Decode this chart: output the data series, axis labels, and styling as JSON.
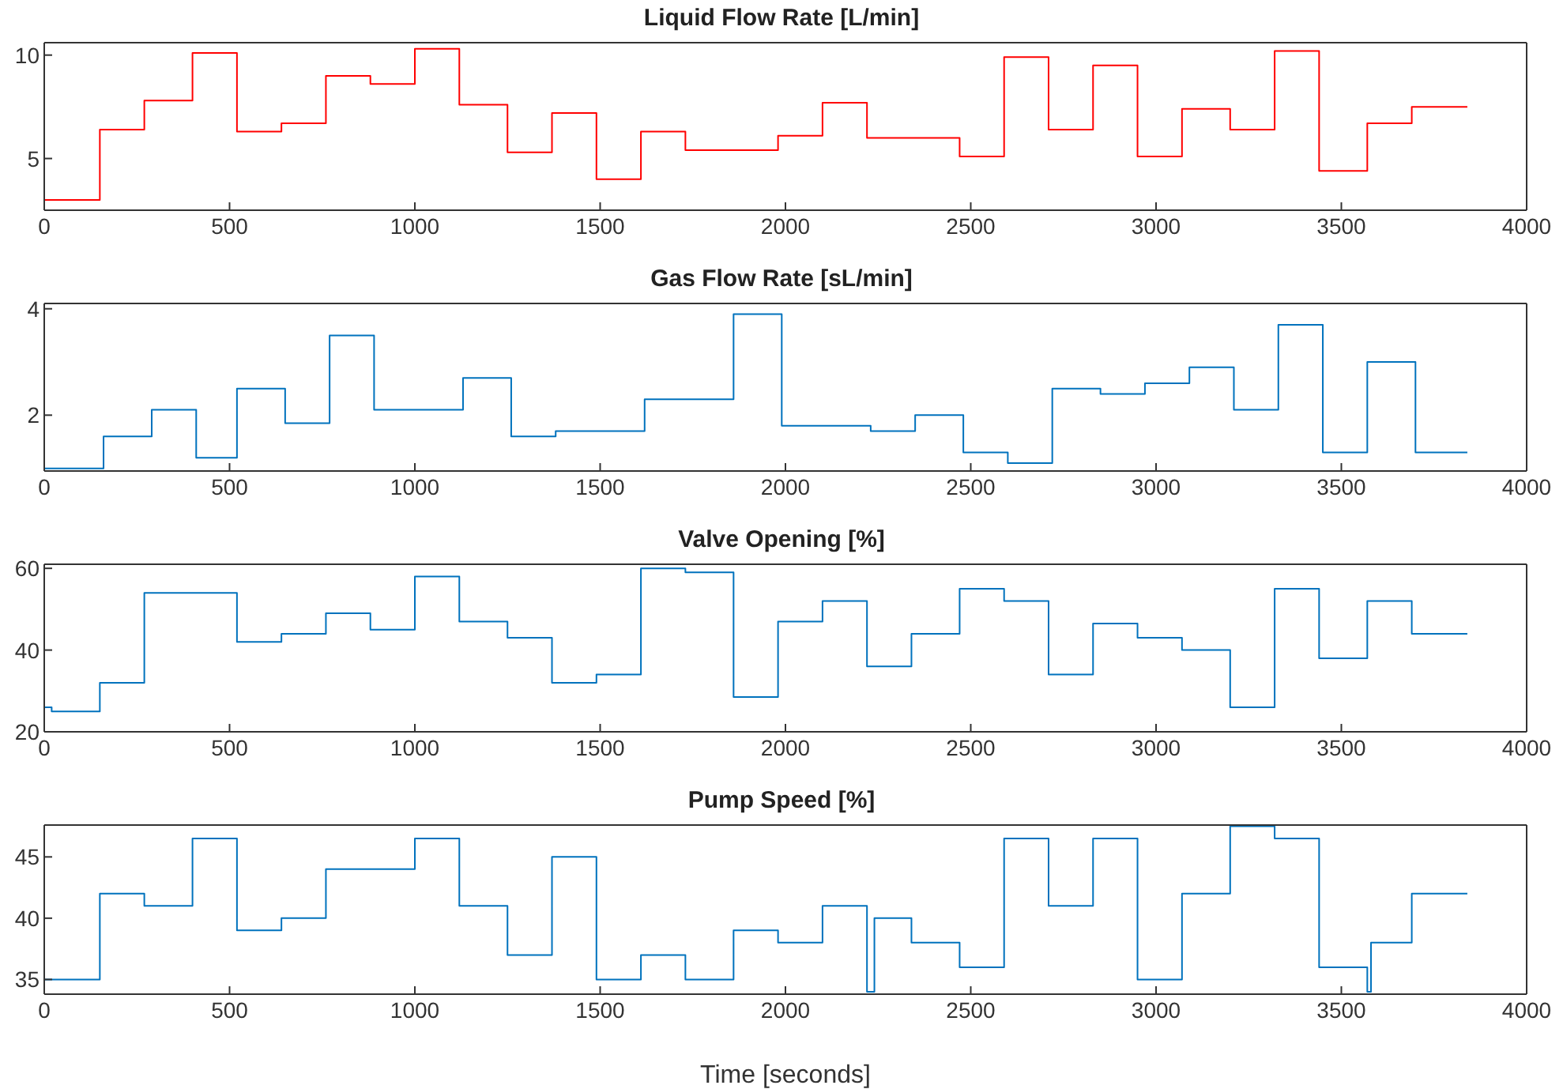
{
  "chart_data": [
    {
      "type": "step",
      "title": "Liquid Flow Rate [L/min]",
      "x": [
        0,
        150,
        270,
        400,
        520,
        640,
        760,
        880,
        1000,
        1120,
        1250,
        1370,
        1490,
        1610,
        1730,
        1980,
        2100,
        2220,
        2470,
        2590,
        2710,
        2830,
        2950,
        3070,
        3200,
        3320,
        3440,
        3570,
        3690,
        3840
      ],
      "series": [
        {
          "color": "#ff0000",
          "values": [
            3.0,
            6.4,
            7.8,
            10.1,
            6.3,
            6.7,
            9.0,
            8.6,
            10.3,
            7.6,
            5.3,
            7.2,
            4.0,
            6.3,
            5.4,
            6.1,
            7.7,
            6.0,
            5.1,
            9.9,
            6.4,
            9.5,
            5.1,
            7.4,
            6.4,
            10.2,
            4.4,
            6.7,
            7.5,
            7.5
          ]
        }
      ],
      "xlim": [
        0,
        4000
      ],
      "xticks": [
        0,
        500,
        1000,
        1500,
        2000,
        2500,
        3000,
        3500,
        4000
      ],
      "ylim": [
        2.5,
        10.6
      ],
      "yticks": [
        5,
        10
      ],
      "grid": false,
      "legend": false
    },
    {
      "type": "step",
      "title": "Gas Flow Rate [sL/min]",
      "x": [
        0,
        160,
        290,
        410,
        520,
        650,
        770,
        890,
        1130,
        1260,
        1380,
        1620,
        1860,
        1990,
        2230,
        2350,
        2480,
        2600,
        2720,
        2850,
        2970,
        3090,
        3210,
        3330,
        3450,
        3570,
        3700,
        3840
      ],
      "series": [
        {
          "color": "#0072bd",
          "values": [
            1.0,
            1.6,
            2.1,
            1.2,
            2.5,
            1.85,
            3.5,
            2.1,
            2.7,
            1.6,
            1.7,
            2.3,
            3.9,
            1.8,
            1.7,
            2.0,
            1.3,
            1.1,
            2.5,
            2.4,
            2.6,
            2.9,
            2.1,
            3.7,
            1.3,
            3.0,
            1.3,
            1.3
          ]
        }
      ],
      "xlim": [
        0,
        4000
      ],
      "xticks": [
        0,
        500,
        1000,
        1500,
        2000,
        2500,
        3000,
        3500,
        4000
      ],
      "ylim": [
        0.95,
        4.1
      ],
      "yticks": [
        2,
        4
      ],
      "grid": false,
      "legend": false
    },
    {
      "type": "step",
      "title": "Valve Opening [%]",
      "x": [
        0,
        20,
        150,
        270,
        520,
        640,
        760,
        880,
        1000,
        1120,
        1250,
        1370,
        1490,
        1610,
        1730,
        1860,
        1980,
        2100,
        2220,
        2340,
        2470,
        2590,
        2710,
        2830,
        2950,
        3070,
        3200,
        3320,
        3440,
        3570,
        3690,
        3840
      ],
      "series": [
        {
          "color": "#0072bd",
          "values": [
            26,
            25,
            32,
            54,
            42,
            44,
            49,
            45,
            58,
            47,
            43,
            32,
            34,
            60,
            59,
            28.5,
            47,
            52,
            36,
            44,
            55,
            52,
            34,
            46.5,
            43,
            40,
            26,
            55,
            38,
            52,
            44,
            44
          ]
        }
      ],
      "xlim": [
        0,
        4000
      ],
      "xticks": [
        0,
        500,
        1000,
        1500,
        2000,
        2500,
        3000,
        3500,
        4000
      ],
      "ylim": [
        20,
        61
      ],
      "yticks": [
        20,
        40,
        60
      ],
      "grid": false,
      "legend": false
    },
    {
      "type": "step",
      "title": "Pump Speed [%]",
      "xlabel": "Time [seconds]",
      "x": [
        0,
        150,
        270,
        400,
        520,
        640,
        760,
        1000,
        1120,
        1250,
        1370,
        1490,
        1610,
        1730,
        1860,
        1980,
        2100,
        2220,
        2240,
        2340,
        2470,
        2590,
        2710,
        2830,
        2950,
        3070,
        3200,
        3320,
        3440,
        3570,
        3580,
        3690,
        3840
      ],
      "series": [
        {
          "color": "#0072bd",
          "values": [
            35,
            42,
            41,
            46.5,
            39,
            40,
            44,
            46.5,
            41,
            37,
            45,
            35,
            37,
            35,
            39,
            38,
            41,
            34,
            40,
            38,
            36,
            46.5,
            41,
            46.5,
            35,
            42,
            47.5,
            46.5,
            36,
            34,
            38,
            42,
            42
          ]
        }
      ],
      "xlim": [
        0,
        4000
      ],
      "xticks": [
        0,
        500,
        1000,
        1500,
        2000,
        2500,
        3000,
        3500,
        4000
      ],
      "ylim": [
        33.8,
        47.6
      ],
      "yticks": [
        35,
        40,
        45
      ],
      "grid": false,
      "legend": false
    }
  ]
}
